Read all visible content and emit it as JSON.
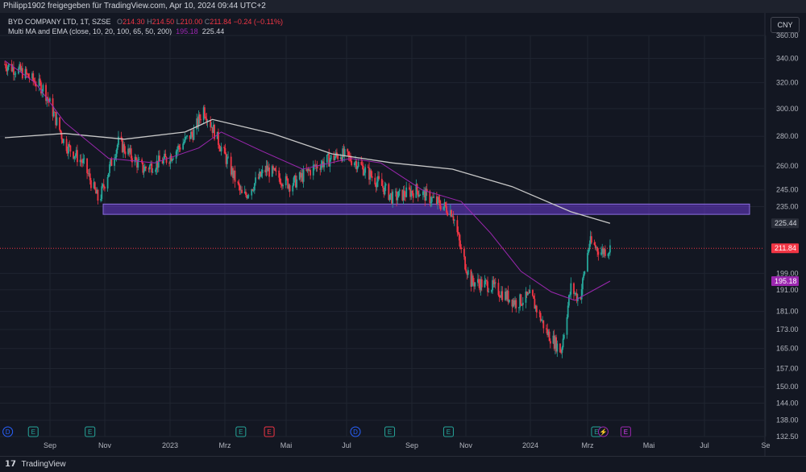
{
  "header": {
    "publisher": "Philipp1902 freigegeben für TradingView.com, Apr 10, 2024 09:44 UTC+2"
  },
  "legend": {
    "symbol": "BYD COMPANY LTD, 1T, SZSE",
    "open_label": "O",
    "open": "214.30",
    "high_label": "H",
    "high": "214.50",
    "low_label": "L",
    "low": "210.00",
    "close_label": "C",
    "close": "211.84",
    "change": "−0.24 (−0.11%)",
    "indicator": "Multi MA and EMA (close, 10, 20, 100, 65, 50, 200)",
    "ma1_value": "195.18",
    "ma2_value": "225.44"
  },
  "currency": "CNY",
  "footer": {
    "brand": "TradingView"
  },
  "colors": {
    "up": "#26a69a",
    "down": "#f23645",
    "ma200": "#c8c8c8",
    "ema": "#9c27b0",
    "zone": "#6a3bd0",
    "price_tag": "#f23645",
    "ema_tag": "#9c27b0"
  },
  "chart_data": {
    "type": "line",
    "title": "BYD COMPANY LTD, 1T, SZSE",
    "y_axis": {
      "ticks": [
        "360.00",
        "340.00",
        "320.00",
        "300.00",
        "280.00",
        "260.00",
        "245.00",
        "235.00",
        "225.44",
        "211.84",
        "199.00",
        "195.18",
        "191.00",
        "181.00",
        "173.00",
        "165.00",
        "157.00",
        "150.00",
        "144.00",
        "138.00",
        "132.50"
      ],
      "scale": "log",
      "ylim": [
        132.5,
        360
      ]
    },
    "x_axis": {
      "ticks": [
        "Sep",
        "Nov",
        "2023",
        "Mrz",
        "Mai",
        "Jul",
        "Sep",
        "Nov",
        "2024",
        "Mrz",
        "Mai",
        "Jul",
        "Se"
      ]
    },
    "price_path": {
      "x": [
        "2022-08-01",
        "2022-08-20",
        "2022-09-10",
        "2022-10-01",
        "2022-10-20",
        "2022-11-05",
        "2022-11-25",
        "2022-12-20",
        "2023-01-15",
        "2023-02-10",
        "2023-02-20",
        "2023-03-10",
        "2023-04-01",
        "2023-04-25",
        "2023-05-20",
        "2023-06-15",
        "2023-07-10",
        "2023-07-25",
        "2023-08-20",
        "2023-09-01",
        "2023-09-25",
        "2023-10-15",
        "2023-11-01",
        "2023-11-10",
        "2023-11-20",
        "2023-12-10",
        "2024-01-05",
        "2024-01-20",
        "2024-02-05",
        "2024-02-20",
        "2024-03-01",
        "2024-03-10",
        "2024-03-20",
        "2024-04-01",
        "2024-04-10"
      ],
      "y": [
        335,
        328,
        315,
        275,
        262,
        238,
        276,
        258,
        265,
        283,
        300,
        272,
        240,
        258,
        248,
        260,
        268,
        263,
        248,
        240,
        245,
        238,
        232,
        210,
        195,
        193,
        185,
        188,
        172,
        164,
        192,
        186,
        215,
        210,
        211.84
      ]
    },
    "series": [
      {
        "name": "",
        "role": "sma200",
        "x": [
          "2022-08-01",
          "2022-10-01",
          "2022-12-01",
          "2023-02-01",
          "2023-03-01",
          "2023-05-01",
          "2023-07-01",
          "2023-09-01",
          "2023-11-01",
          "2024-01-01",
          "2024-03-01",
          "2024-04-10"
        ],
        "y": [
          279,
          282,
          278,
          283,
          292,
          282,
          268,
          262,
          258,
          247,
          232,
          225.44
        ]
      },
      {
        "name": "",
        "role": "ema",
        "x": [
          "2022-08-01",
          "2022-09-01",
          "2022-10-01",
          "2022-11-15",
          "2023-01-01",
          "2023-02-15",
          "2023-03-10",
          "2023-04-20",
          "2023-06-01",
          "2023-07-20",
          "2023-08-20",
          "2023-10-01",
          "2023-11-10",
          "2023-12-10",
          "2024-01-10",
          "2024-02-10",
          "2024-03-05",
          "2024-04-10"
        ],
        "y": [
          338,
          320,
          290,
          265,
          262,
          272,
          283,
          270,
          258,
          265,
          262,
          245,
          238,
          220,
          200,
          190,
          186,
          195.18
        ]
      }
    ],
    "annotations": [
      {
        "type": "zone",
        "y_from": 230.5,
        "y_to": 236.5,
        "x_from": "2022-11-01",
        "x_to": "2024-09-30"
      },
      {
        "type": "hline",
        "y": 211.84,
        "style": "dotted"
      }
    ],
    "event_markers": [
      {
        "label": "D",
        "x": "2022-08-04"
      },
      {
        "label": "E",
        "x": "2022-08-30"
      },
      {
        "label": "E",
        "x": "2022-10-27"
      },
      {
        "label": "E",
        "x": "2023-03-30"
      },
      {
        "label": "E",
        "x": "2023-04-28"
      },
      {
        "label": "D",
        "x": "2023-07-25"
      },
      {
        "label": "E",
        "x": "2023-08-29"
      },
      {
        "label": "E",
        "x": "2023-10-28"
      },
      {
        "label": "E",
        "x": "2024-03-27"
      },
      {
        "label": "⚡",
        "x": "2024-04-03"
      },
      {
        "label": "E",
        "x": "2024-04-26"
      }
    ],
    "legend": "top-left",
    "grid": true
  }
}
